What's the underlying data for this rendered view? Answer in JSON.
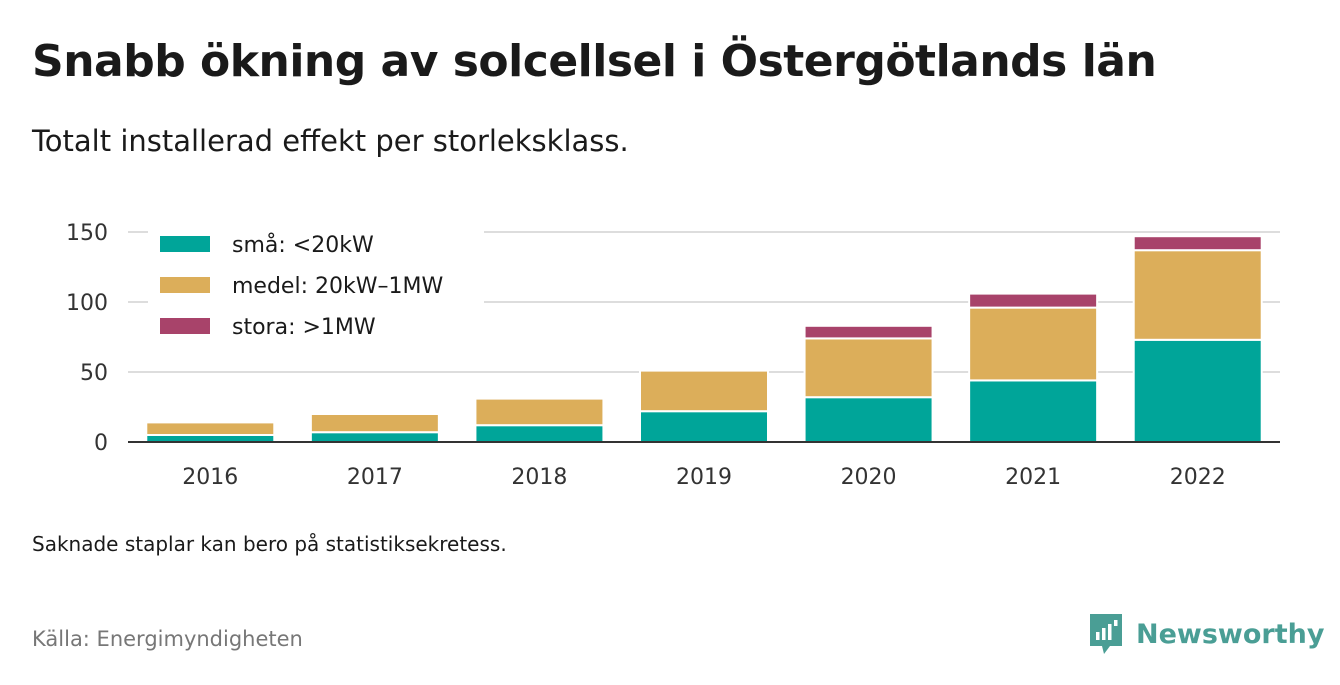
{
  "header": {
    "title": "Snabb ökning av solcellsel i Östergötlands län",
    "subtitle": "Totalt installerad effekt per storleksklass."
  },
  "footer": {
    "note": "Saknade staplar kan bero på statistiksekretess.",
    "source": "Källa: Energimyndigheten",
    "brand": "Newsworthy",
    "brand_color": "#4a9e95"
  },
  "chart_data": {
    "type": "bar",
    "stacked": true,
    "categories": [
      "2016",
      "2017",
      "2018",
      "2019",
      "2020",
      "2021",
      "2022"
    ],
    "series": [
      {
        "name": "små: <20kW",
        "color": "#00a599",
        "values": [
          5,
          7,
          12,
          22,
          32,
          44,
          73
        ]
      },
      {
        "name": "medel: 20kW–1MW",
        "color": "#dcae5a",
        "values": [
          9,
          13,
          19,
          29,
          42,
          52,
          64
        ]
      },
      {
        "name": "stora: >1MW",
        "color": "#a8436a",
        "values": [
          0,
          0,
          0,
          0,
          9,
          10,
          10
        ]
      }
    ],
    "yticks": [
      0,
      50,
      100,
      150
    ],
    "ylim": [
      0,
      150
    ],
    "grid": true,
    "legend_position": "top-left"
  }
}
